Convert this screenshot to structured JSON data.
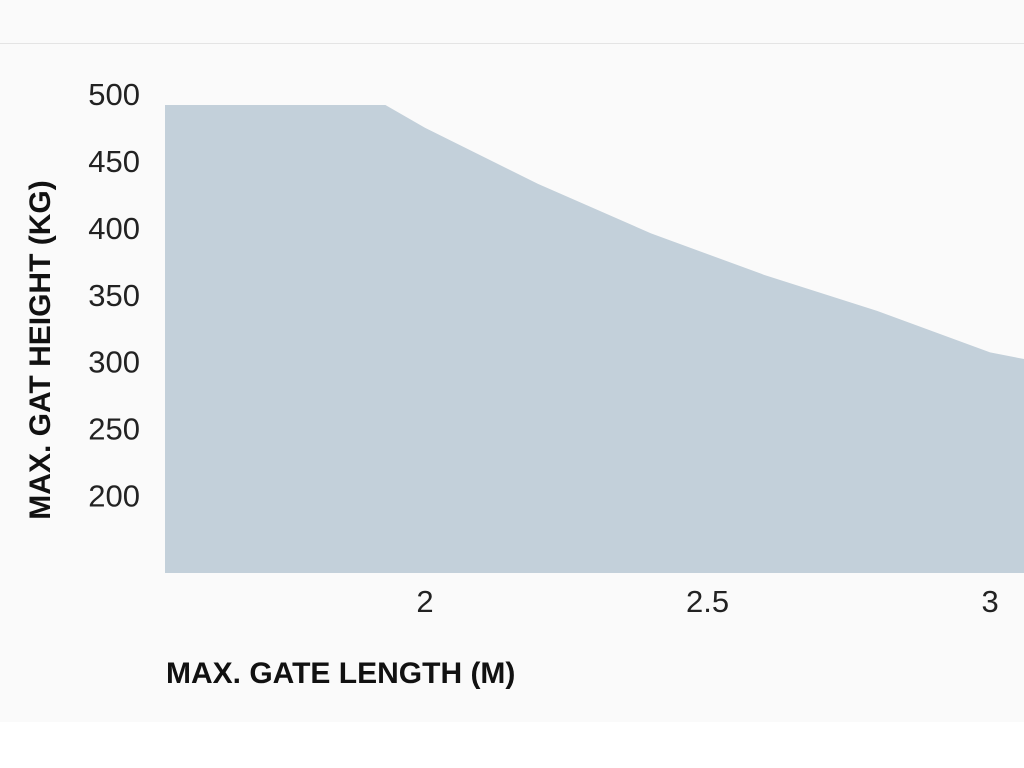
{
  "chart_data": {
    "type": "area",
    "x": [
      1.54,
      1.93,
      2.0,
      2.2,
      2.4,
      2.6,
      2.8,
      3.0,
      3.06
    ],
    "values": [
      500,
      500,
      483,
      441,
      404,
      373,
      346,
      315,
      310
    ],
    "color": "#c3d0da",
    "xlim": [
      1.54,
      3.06
    ],
    "xticks": [
      2,
      2.5,
      3
    ],
    "ylim": [
      150,
      500
    ],
    "yticks": [
      200,
      250,
      300,
      350,
      400,
      450,
      500
    ],
    "xlabel": "MAX. GATE LENGTH (M)",
    "ylabel": "MAX. GAT HEIGHT (KG)",
    "grid": false
  }
}
